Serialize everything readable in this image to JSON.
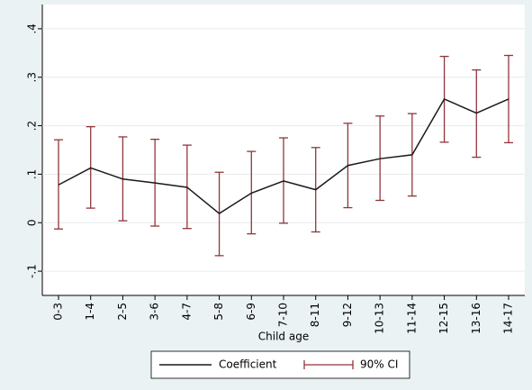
{
  "chart_data": {
    "type": "line",
    "x_label": "Child age",
    "categories": [
      "0-3",
      "1-4",
      "2-5",
      "3-6",
      "4-7",
      "5-8",
      "6-9",
      "7-10",
      "8-11",
      "9-12",
      "10-13",
      "11-14",
      "12-15",
      "13-16",
      "14-17"
    ],
    "series": [
      {
        "name": "Coefficient",
        "color": "#1a1a1a",
        "values": [
          0.078,
          0.113,
          0.09,
          0.082,
          0.073,
          0.019,
          0.061,
          0.086,
          0.068,
          0.118,
          0.132,
          0.14,
          0.255,
          0.226,
          0.255
        ]
      },
      {
        "name": "90% CI",
        "color": "#90353b",
        "lower": [
          -0.013,
          0.03,
          0.004,
          -0.007,
          -0.012,
          -0.068,
          -0.023,
          -0.001,
          -0.019,
          0.031,
          0.046,
          0.055,
          0.166,
          0.135,
          0.165
        ],
        "upper": [
          0.171,
          0.198,
          0.177,
          0.172,
          0.16,
          0.104,
          0.147,
          0.175,
          0.155,
          0.205,
          0.22,
          0.225,
          0.343,
          0.315,
          0.345
        ]
      }
    ],
    "ylim": [
      -0.15,
      0.45
    ],
    "yticks": [
      {
        "value": -0.1,
        "label": "-.1"
      },
      0,
      {
        "value": 0.1,
        "label": ".1"
      },
      {
        "value": 0.2,
        "label": ".2"
      },
      {
        "value": 0.3,
        "label": ".3"
      },
      {
        "value": 0.4,
        "label": ".4"
      }
    ],
    "grid": true,
    "legend": "bottom"
  }
}
